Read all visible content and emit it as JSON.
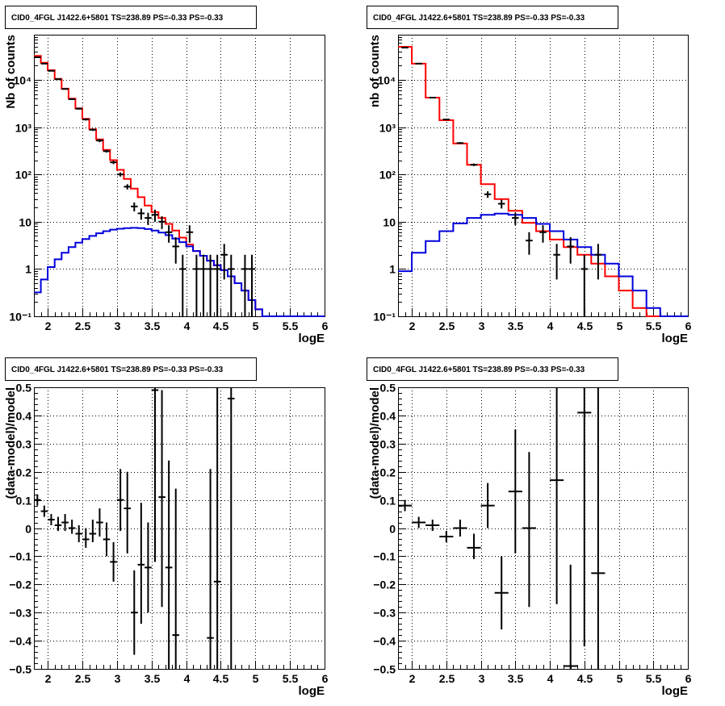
{
  "chart_data": [
    {
      "type": "line",
      "panel": "top-left",
      "title": "CID0_4FGL J1422.6+5801 TS=238.89 PS=-0.33 PS=-0.33",
      "xlabel": "logE",
      "ylabel": "Nb of counts",
      "xlim": [
        1.8,
        6.0
      ],
      "ylim": [
        0.1,
        90000
      ],
      "ylog": true,
      "grid": true,
      "x_ticks": [
        2,
        2.5,
        3,
        3.5,
        4,
        4.5,
        5,
        5.5,
        6
      ],
      "x_tick_labels": [
        "2",
        "2.5",
        "3",
        "3.5",
        "4",
        "4.5",
        "5",
        "5.5",
        "6"
      ],
      "y_ticks": [
        0.1,
        1,
        10,
        100,
        1000,
        10000
      ],
      "y_tick_labels": [
        "10⁻¹",
        "1",
        "10",
        "10²",
        "10³",
        "10⁴"
      ],
      "bin_edges": [
        1.8,
        1.9,
        2.0,
        2.1,
        2.2,
        2.3,
        2.4,
        2.5,
        2.6,
        2.7,
        2.8,
        2.9,
        3.0,
        3.1,
        3.2,
        3.3,
        3.4,
        3.5,
        3.6,
        3.7,
        3.8,
        3.9,
        4.0,
        4.1,
        4.2,
        4.3,
        4.4,
        4.5,
        4.6,
        4.7,
        4.8,
        4.9,
        5.0,
        5.1,
        5.2,
        5.3,
        5.4,
        5.5,
        5.6,
        5.7,
        5.8,
        5.9,
        6.0
      ],
      "series": [
        {
          "role": "total",
          "color": "#ff0000",
          "values": [
            32000,
            23000,
            16000,
            10500,
            6500,
            4000,
            2500,
            1500,
            900,
            550,
            330,
            200,
            125,
            80,
            50,
            33,
            22,
            16,
            12,
            9,
            6.5,
            4.6,
            3.3,
            2.4,
            1.9,
            1.5,
            1.2,
            0.95,
            0.7,
            0.5,
            0.35,
            0.22,
            0.14,
            0.1,
            0.1,
            0.1,
            0.1,
            0.1,
            0.1,
            0.1,
            0.1,
            0.1
          ]
        },
        {
          "role": "component",
          "color": "#0000dd",
          "values": [
            0.32,
            0.6,
            1.1,
            1.6,
            2.2,
            2.9,
            3.6,
            4.3,
            5.0,
            5.7,
            6.3,
            6.8,
            7.1,
            7.3,
            7.4,
            7.3,
            7.0,
            6.5,
            5.9,
            5.2,
            4.4,
            3.7,
            3.0,
            2.4,
            1.9,
            1.5,
            1.2,
            0.95,
            0.7,
            0.5,
            0.35,
            0.22,
            0.14,
            0.1,
            0.1,
            0.1,
            0.1,
            0.1,
            0.1,
            0.1,
            0.1,
            0.1
          ]
        }
      ],
      "points": [
        {
          "x": 1.85,
          "y": 30000,
          "lo": 29800,
          "hi": 30200
        },
        {
          "x": 1.95,
          "y": 22000,
          "lo": 21800,
          "hi": 22200
        },
        {
          "x": 2.05,
          "y": 15500,
          "lo": 15300,
          "hi": 15700
        },
        {
          "x": 2.15,
          "y": 10300,
          "lo": 10100,
          "hi": 10500
        },
        {
          "x": 2.25,
          "y": 6400,
          "lo": 6250,
          "hi": 6550
        },
        {
          "x": 2.35,
          "y": 3900,
          "lo": 3780,
          "hi": 4020
        },
        {
          "x": 2.45,
          "y": 2450,
          "lo": 2350,
          "hi": 2550
        },
        {
          "x": 2.55,
          "y": 1450,
          "lo": 1380,
          "hi": 1520
        },
        {
          "x": 2.65,
          "y": 880,
          "lo": 830,
          "hi": 930
        },
        {
          "x": 2.75,
          "y": 520,
          "lo": 480,
          "hi": 560
        },
        {
          "x": 2.85,
          "y": 310,
          "lo": 290,
          "hi": 330
        },
        {
          "x": 2.95,
          "y": 180,
          "lo": 165,
          "hi": 195
        },
        {
          "x": 3.05,
          "y": 100,
          "lo": 90,
          "hi": 110
        },
        {
          "x": 3.15,
          "y": 55,
          "lo": 48,
          "hi": 62
        },
        {
          "x": 3.25,
          "y": 21,
          "lo": 16.5,
          "hi": 25.5
        },
        {
          "x": 3.35,
          "y": 15,
          "lo": 11,
          "hi": 19
        },
        {
          "x": 3.45,
          "y": 12,
          "lo": 8.5,
          "hi": 15.5
        },
        {
          "x": 3.55,
          "y": 14,
          "lo": 10,
          "hi": 18
        },
        {
          "x": 3.65,
          "y": 10,
          "lo": 7,
          "hi": 13
        },
        {
          "x": 3.75,
          "y": 6,
          "lo": 3.6,
          "hi": 8.4
        },
        {
          "x": 3.85,
          "y": 3,
          "lo": 1.3,
          "hi": 4.7
        },
        {
          "x": 3.95,
          "y": 1,
          "lo": 0.1,
          "hi": 2.0
        },
        {
          "x": 4.05,
          "y": 6,
          "lo": 3.6,
          "hi": 8.4
        },
        {
          "x": 4.15,
          "y": 1,
          "lo": 0.1,
          "hi": 2.0
        },
        {
          "x": 4.25,
          "y": 1,
          "lo": 0.1,
          "hi": 2.0
        },
        {
          "x": 4.35,
          "y": 1,
          "lo": 0.1,
          "hi": 2.0
        },
        {
          "x": 4.45,
          "y": 1,
          "lo": 0.1,
          "hi": 2.0
        },
        {
          "x": 4.55,
          "y": 2,
          "lo": 0.6,
          "hi": 3.4
        },
        {
          "x": 4.65,
          "y": 1,
          "lo": 0.1,
          "hi": 2.0
        },
        {
          "x": 4.85,
          "y": 1,
          "lo": 0.1,
          "hi": 2.0
        },
        {
          "x": 4.95,
          "y": 1,
          "lo": 0.1,
          "hi": 2.0
        }
      ]
    },
    {
      "type": "line",
      "panel": "top-right",
      "title": "CID0_4FGL J1422.6+5801 TS=238.89 PS=-0.33 PS=-0.33",
      "xlabel": "logE",
      "ylabel": "nb of counts",
      "xlim": [
        1.8,
        6.0
      ],
      "ylim": [
        0.1,
        90000
      ],
      "ylog": true,
      "grid": true,
      "x_ticks": [
        2,
        2.5,
        3,
        3.5,
        4,
        4.5,
        5,
        5.5,
        6
      ],
      "x_tick_labels": [
        "2",
        "2.5",
        "3",
        "3.5",
        "4",
        "4.5",
        "5",
        "5.5",
        "6"
      ],
      "y_ticks": [
        0.1,
        1,
        10,
        100,
        1000,
        10000
      ],
      "y_tick_labels": [
        "10⁻¹",
        "1",
        "10",
        "10²",
        "10³",
        "10⁴"
      ],
      "bin_edges": [
        1.8,
        2.0,
        2.2,
        2.4,
        2.6,
        2.8,
        3.0,
        3.2,
        3.4,
        3.6,
        3.8,
        4.0,
        4.2,
        4.4,
        4.6,
        4.8,
        5.0,
        5.2,
        5.4,
        5.6,
        5.8,
        6.0
      ],
      "series": [
        {
          "role": "total",
          "color": "#ff0000",
          "values": [
            50000,
            22000,
            4200,
            1400,
            450,
            160,
            62,
            30,
            17,
            9.5,
            6.3,
            4.2,
            2.9,
            2.0,
            1.3,
            0.7,
            0.35,
            0.15,
            0.1,
            0.1,
            0.1
          ]
        },
        {
          "role": "component",
          "color": "#0000dd",
          "values": [
            0.9,
            2.2,
            3.9,
            6.3,
            9.2,
            12.0,
            14.0,
            14.8,
            14.0,
            12.0,
            9.0,
            6.3,
            4.2,
            2.9,
            2.0,
            1.3,
            0.7,
            0.35,
            0.15,
            0.1,
            0.1
          ]
        }
      ],
      "points": [
        {
          "x": 1.9,
          "y": 48000,
          "lo": 47500,
          "hi": 48500
        },
        {
          "x": 2.1,
          "y": 22000,
          "lo": 21700,
          "hi": 22300
        },
        {
          "x": 2.3,
          "y": 4200,
          "lo": 4100,
          "hi": 4300
        },
        {
          "x": 2.5,
          "y": 1450,
          "lo": 1400,
          "hi": 1500
        },
        {
          "x": 2.7,
          "y": 460,
          "lo": 440,
          "hi": 480
        },
        {
          "x": 2.9,
          "y": 160,
          "lo": 150,
          "hi": 170
        },
        {
          "x": 3.1,
          "y": 38,
          "lo": 32,
          "hi": 44
        },
        {
          "x": 3.3,
          "y": 24,
          "lo": 19,
          "hi": 29
        },
        {
          "x": 3.5,
          "y": 12,
          "lo": 8.5,
          "hi": 15.5
        },
        {
          "x": 3.7,
          "y": 4,
          "lo": 2,
          "hi": 6
        },
        {
          "x": 3.9,
          "y": 6,
          "lo": 3.6,
          "hi": 8.4
        },
        {
          "x": 4.1,
          "y": 2,
          "lo": 0.6,
          "hi": 3.4
        },
        {
          "x": 4.3,
          "y": 3,
          "lo": 1.3,
          "hi": 4.7
        },
        {
          "x": 4.5,
          "y": 1,
          "lo": 0.1,
          "hi": 2.0
        },
        {
          "x": 4.7,
          "y": 2,
          "lo": 0.6,
          "hi": 3.4
        }
      ]
    },
    {
      "type": "scatter",
      "panel": "bottom-left",
      "title": "CID0_4FGL J1422.6+5801 TS=238.89 PS=-0.33 PS=-0.33",
      "xlabel": "logE",
      "ylabel": "(data-model)/model",
      "xlim": [
        1.8,
        6.0
      ],
      "ylim": [
        -0.5,
        0.5
      ],
      "ylog": false,
      "grid": true,
      "x_ticks": [
        2,
        2.5,
        3,
        3.5,
        4,
        4.5,
        5,
        5.5,
        6
      ],
      "x_tick_labels": [
        "2",
        "2.5",
        "3",
        "3.5",
        "4",
        "4.5",
        "5",
        "5.5",
        "6"
      ],
      "y_ticks": [
        -0.5,
        -0.4,
        -0.3,
        -0.2,
        -0.1,
        0,
        0.1,
        0.2,
        0.3,
        0.4,
        0.5
      ],
      "y_tick_labels": [
        "−0.5",
        "−0.4",
        "−0.3",
        "−0.2",
        "−0.1",
        "0",
        "0.1",
        "0.2",
        "0.3",
        "0.4",
        "0.5"
      ],
      "xerr": 0.05,
      "points": [
        {
          "x": 1.85,
          "y": 0.1,
          "lo": 0.08,
          "hi": 0.12
        },
        {
          "x": 1.95,
          "y": 0.06,
          "lo": 0.04,
          "hi": 0.08
        },
        {
          "x": 2.05,
          "y": 0.03,
          "lo": 0.01,
          "hi": 0.05
        },
        {
          "x": 2.15,
          "y": 0.01,
          "lo": -0.01,
          "hi": 0.04
        },
        {
          "x": 2.25,
          "y": 0.02,
          "lo": -0.01,
          "hi": 0.05
        },
        {
          "x": 2.35,
          "y": 0.0,
          "lo": -0.02,
          "hi": 0.03
        },
        {
          "x": 2.45,
          "y": -0.02,
          "lo": -0.05,
          "hi": 0.01
        },
        {
          "x": 2.55,
          "y": -0.04,
          "lo": -0.07,
          "hi": 0.0
        },
        {
          "x": 2.65,
          "y": -0.02,
          "lo": -0.05,
          "hi": 0.03
        },
        {
          "x": 2.75,
          "y": 0.02,
          "lo": -0.03,
          "hi": 0.07
        },
        {
          "x": 2.85,
          "y": -0.04,
          "lo": -0.1,
          "hi": 0.02
        },
        {
          "x": 2.95,
          "y": -0.12,
          "lo": -0.19,
          "hi": -0.05
        },
        {
          "x": 3.05,
          "y": 0.1,
          "lo": -0.01,
          "hi": 0.21
        },
        {
          "x": 3.15,
          "y": 0.07,
          "lo": -0.09,
          "hi": 0.2
        },
        {
          "x": 3.25,
          "y": -0.3,
          "lo": -0.45,
          "hi": -0.15
        },
        {
          "x": 3.35,
          "y": -0.13,
          "lo": -0.34,
          "hi": 0.09
        },
        {
          "x": 3.45,
          "y": -0.14,
          "lo": -0.3,
          "hi": 0.02
        },
        {
          "x": 3.55,
          "y": 0.49,
          "lo": -0.12,
          "hi": 0.5
        },
        {
          "x": 3.65,
          "y": 0.11,
          "lo": -0.28,
          "hi": 0.49
        },
        {
          "x": 3.75,
          "y": -0.14,
          "lo": -0.5,
          "hi": 0.24
        },
        {
          "x": 3.85,
          "y": -0.38,
          "lo": -0.5,
          "hi": 0.14
        },
        {
          "x": 4.35,
          "y": -0.39,
          "lo": -0.5,
          "hi": 0.21
        },
        {
          "x": 4.45,
          "y": -0.19,
          "lo": -0.5,
          "hi": 0.5
        },
        {
          "x": 4.65,
          "y": 0.46,
          "lo": -0.5,
          "hi": 0.5
        }
      ]
    },
    {
      "type": "scatter",
      "panel": "bottom-right",
      "title": "CID0_4FGL J1422.6+5801 TS=238.89 PS=-0.33 PS=-0.33",
      "xlabel": "logE",
      "ylabel": "(data-model)/model",
      "xlim": [
        1.8,
        6.0
      ],
      "ylim": [
        -0.5,
        0.5
      ],
      "ylog": false,
      "grid": true,
      "x_ticks": [
        2,
        2.5,
        3,
        3.5,
        4,
        4.5,
        5,
        5.5,
        6
      ],
      "x_tick_labels": [
        "2",
        "2.5",
        "3",
        "3.5",
        "4",
        "4.5",
        "5",
        "5.5",
        "6"
      ],
      "y_ticks": [
        -0.5,
        -0.4,
        -0.3,
        -0.2,
        -0.1,
        0,
        0.1,
        0.2,
        0.3,
        0.4,
        0.5
      ],
      "y_tick_labels": [
        "−0.5",
        "−0.4",
        "−0.3",
        "−0.2",
        "−0.1",
        "0",
        "0.1",
        "0.2",
        "0.3",
        "0.4",
        "0.5"
      ],
      "xerr": 0.1,
      "points": [
        {
          "x": 1.9,
          "y": 0.08,
          "lo": 0.06,
          "hi": 0.1
        },
        {
          "x": 2.1,
          "y": 0.02,
          "lo": 0.0,
          "hi": 0.04
        },
        {
          "x": 2.3,
          "y": 0.01,
          "lo": -0.01,
          "hi": 0.03
        },
        {
          "x": 2.5,
          "y": -0.03,
          "lo": -0.05,
          "hi": -0.01
        },
        {
          "x": 2.7,
          "y": 0.0,
          "lo": -0.03,
          "hi": 0.03
        },
        {
          "x": 2.9,
          "y": -0.07,
          "lo": -0.11,
          "hi": -0.02
        },
        {
          "x": 3.1,
          "y": 0.08,
          "lo": 0.0,
          "hi": 0.16
        },
        {
          "x": 3.3,
          "y": -0.23,
          "lo": -0.36,
          "hi": -0.1
        },
        {
          "x": 3.5,
          "y": 0.13,
          "lo": -0.09,
          "hi": 0.35
        },
        {
          "x": 3.7,
          "y": 0.0,
          "lo": -0.28,
          "hi": 0.27
        },
        {
          "x": 4.1,
          "y": 0.17,
          "lo": -0.27,
          "hi": 0.5
        },
        {
          "x": 4.3,
          "y": -0.49,
          "lo": -0.5,
          "hi": -0.13
        },
        {
          "x": 4.5,
          "y": 0.41,
          "lo": -0.42,
          "hi": 0.5
        },
        {
          "x": 4.7,
          "y": -0.16,
          "lo": -0.5,
          "hi": 0.5
        }
      ]
    }
  ]
}
